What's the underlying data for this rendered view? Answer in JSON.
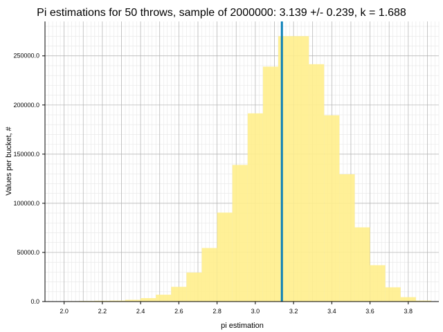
{
  "chart_data": {
    "type": "bar",
    "title": "Pi estimations for 50 throws, sample of 2000000: 3.139 +/- 0.239, k = 1.688",
    "xlabel": "pi estimation",
    "ylabel": "Values per bucket, #",
    "xlim": [
      1.9,
      3.96
    ],
    "ylim": [
      0,
      285000
    ],
    "grid": true,
    "minor_grid": true,
    "bar_color": "#FFEE8C",
    "marker_color": "#0A7FB8",
    "marker_x": 3.139,
    "bin_width": 0.08,
    "bins": [
      {
        "x0": 1.92,
        "value": 200
      },
      {
        "x0": 2.0,
        "value": 400
      },
      {
        "x0": 2.08,
        "value": 600
      },
      {
        "x0": 2.16,
        "value": 800
      },
      {
        "x0": 2.24,
        "value": 1000
      },
      {
        "x0": 2.32,
        "value": 1800
      },
      {
        "x0": 2.4,
        "value": 3500
      },
      {
        "x0": 2.48,
        "value": 7000
      },
      {
        "x0": 2.56,
        "value": 15000
      },
      {
        "x0": 2.64,
        "value": 29500
      },
      {
        "x0": 2.72,
        "value": 54500
      },
      {
        "x0": 2.8,
        "value": 90500
      },
      {
        "x0": 2.88,
        "value": 139000
      },
      {
        "x0": 2.96,
        "value": 191500
      },
      {
        "x0": 3.04,
        "value": 239000
      },
      {
        "x0": 3.12,
        "value": 270000
      },
      {
        "x0": 3.2,
        "value": 270000
      },
      {
        "x0": 3.28,
        "value": 241500
      },
      {
        "x0": 3.36,
        "value": 189500
      },
      {
        "x0": 3.44,
        "value": 129500
      },
      {
        "x0": 3.52,
        "value": 75500
      },
      {
        "x0": 3.6,
        "value": 37000
      },
      {
        "x0": 3.68,
        "value": 14500
      },
      {
        "x0": 3.76,
        "value": 4500
      },
      {
        "x0": 3.84,
        "value": 1000
      }
    ],
    "x_ticks": [
      {
        "value": 2.0,
        "label": "2.0"
      },
      {
        "value": 2.2,
        "label": "2.2"
      },
      {
        "value": 2.4,
        "label": "2.4"
      },
      {
        "value": 2.6,
        "label": "2.6"
      },
      {
        "value": 2.8,
        "label": "2.8"
      },
      {
        "value": 3.0,
        "label": "3.0"
      },
      {
        "value": 3.2,
        "label": "3.2"
      },
      {
        "value": 3.4,
        "label": "3.4"
      },
      {
        "value": 3.6,
        "label": "3.6"
      },
      {
        "value": 3.8,
        "label": "3.8"
      }
    ],
    "y_ticks": [
      {
        "value": 0,
        "label": "0.0"
      },
      {
        "value": 50000,
        "label": "50000.0"
      },
      {
        "value": 100000,
        "label": "100000.0"
      },
      {
        "value": 150000,
        "label": "150000.0"
      },
      {
        "value": 200000,
        "label": "200000.0"
      },
      {
        "value": 250000,
        "label": "250000.0"
      }
    ]
  }
}
